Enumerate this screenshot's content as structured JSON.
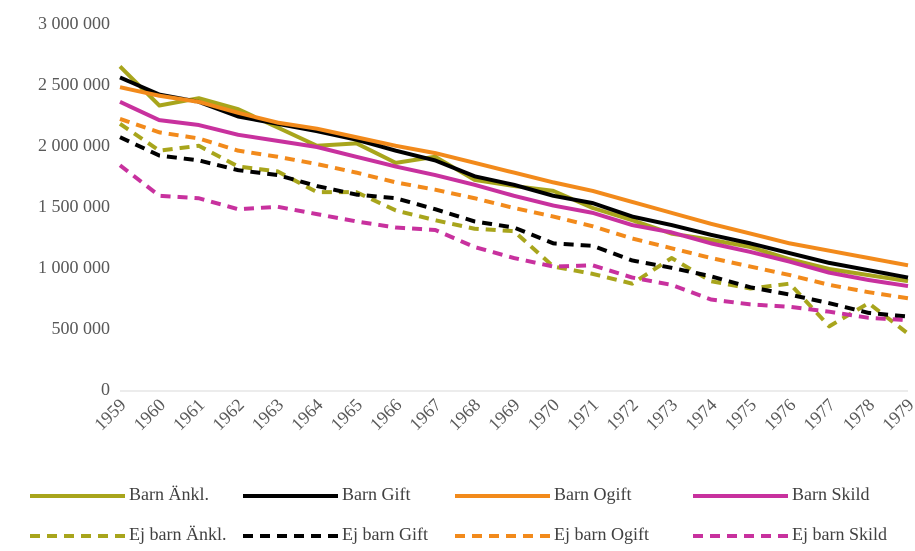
{
  "chart_data": {
    "type": "line",
    "x": [
      "1959",
      "1960",
      "1961",
      "1962",
      "1963",
      "1964",
      "1965",
      "1966",
      "1967",
      "1968",
      "1969",
      "1970",
      "1971",
      "1972",
      "1973",
      "1974",
      "1975",
      "1976",
      "1977",
      "1978",
      "1979"
    ],
    "ylim": [
      0,
      3000000
    ],
    "yticks": [
      {
        "value": 0,
        "label": "0"
      },
      {
        "value": 500000,
        "label": "500 000"
      },
      {
        "value": 1000000,
        "label": "1 000 000"
      },
      {
        "value": 1500000,
        "label": "1 500 000"
      },
      {
        "value": 2000000,
        "label": "2 000 000"
      },
      {
        "value": 2500000,
        "label": "2 500 000"
      },
      {
        "value": 3000000,
        "label": "3 000 000"
      }
    ],
    "grid": false,
    "legend": "bottom",
    "series": [
      {
        "name": "Barn Änkl.",
        "color": "#a8a51c",
        "line_style": "solid",
        "values": [
          2660000,
          2340000,
          2400000,
          2310000,
          2160000,
          2010000,
          2030000,
          1870000,
          1920000,
          1730000,
          1680000,
          1640000,
          1500000,
          1400000,
          1290000,
          1240000,
          1180000,
          1080000,
          1000000,
          950000,
          900000
        ]
      },
      {
        "name": "Barn Gift",
        "color": "#000000",
        "line_style": "solid",
        "values": [
          2570000,
          2430000,
          2370000,
          2250000,
          2190000,
          2130000,
          2060000,
          1970000,
          1890000,
          1760000,
          1690000,
          1600000,
          1540000,
          1430000,
          1360000,
          1280000,
          1210000,
          1130000,
          1050000,
          990000,
          930000
        ]
      },
      {
        "name": "Barn Ogift",
        "color": "#f28a1b",
        "line_style": "solid",
        "values": [
          2490000,
          2420000,
          2370000,
          2280000,
          2200000,
          2150000,
          2080000,
          2010000,
          1950000,
          1870000,
          1790000,
          1710000,
          1640000,
          1550000,
          1460000,
          1370000,
          1290000,
          1210000,
          1150000,
          1090000,
          1030000
        ]
      },
      {
        "name": "Barn Skild",
        "color": "#c8319e",
        "line_style": "solid",
        "values": [
          2370000,
          2220000,
          2180000,
          2100000,
          2050000,
          2000000,
          1920000,
          1840000,
          1770000,
          1690000,
          1600000,
          1520000,
          1460000,
          1360000,
          1300000,
          1210000,
          1140000,
          1060000,
          970000,
          910000,
          860000
        ]
      },
      {
        "name": "Ej barn Änkl.",
        "color": "#a8a51c",
        "line_style": "dashed",
        "values": [
          2190000,
          1970000,
          2010000,
          1840000,
          1800000,
          1630000,
          1630000,
          1480000,
          1400000,
          1330000,
          1310000,
          1020000,
          960000,
          880000,
          1090000,
          900000,
          840000,
          880000,
          530000,
          720000,
          470000
        ]
      },
      {
        "name": "Ej barn Gift",
        "color": "#000000",
        "line_style": "dashed",
        "values": [
          2080000,
          1930000,
          1890000,
          1810000,
          1770000,
          1680000,
          1610000,
          1580000,
          1490000,
          1390000,
          1340000,
          1210000,
          1190000,
          1070000,
          1010000,
          940000,
          850000,
          790000,
          720000,
          640000,
          610000
        ]
      },
      {
        "name": "Ej barn Ogift",
        "color": "#f28a1b",
        "line_style": "dashed",
        "values": [
          2230000,
          2120000,
          2070000,
          1970000,
          1920000,
          1860000,
          1790000,
          1710000,
          1650000,
          1580000,
          1500000,
          1430000,
          1350000,
          1250000,
          1170000,
          1090000,
          1020000,
          950000,
          870000,
          810000,
          760000
        ]
      },
      {
        "name": "Ej barn Skild",
        "color": "#c8319e",
        "line_style": "dashed",
        "values": [
          1850000,
          1600000,
          1580000,
          1490000,
          1510000,
          1450000,
          1390000,
          1340000,
          1320000,
          1180000,
          1090000,
          1020000,
          1030000,
          930000,
          870000,
          750000,
          710000,
          690000,
          650000,
          600000,
          580000
        ]
      }
    ]
  }
}
